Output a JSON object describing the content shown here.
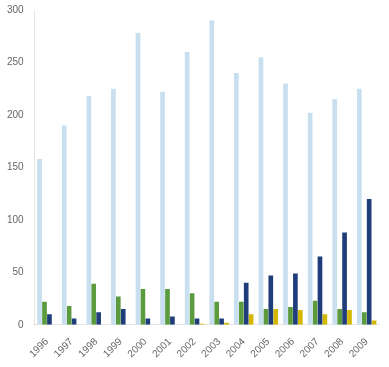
{
  "chart_data": {
    "type": "bar",
    "categories": [
      "1996",
      "1997",
      "1998",
      "1999",
      "2000",
      "2001",
      "2002",
      "2003",
      "2004",
      "2005",
      "2006",
      "2007",
      "2008",
      "2009"
    ],
    "series": [
      {
        "color": "#c8dff0",
        "values": [
          158,
          190,
          218,
          225,
          278,
          222,
          260,
          290,
          240,
          255,
          230,
          202,
          215,
          225
        ]
      },
      {
        "color": "#5b9a3d",
        "values": [
          22,
          18,
          39,
          27,
          34,
          34,
          30,
          22,
          22,
          15,
          17,
          23,
          15,
          12
        ]
      },
      {
        "color": "#1f3d7a",
        "values": [
          10,
          6,
          12,
          15,
          6,
          8,
          6,
          6,
          40,
          47,
          49,
          65,
          88,
          120
        ]
      },
      {
        "color": "#d4b800",
        "values": [
          0,
          0,
          0,
          0,
          0,
          0,
          1,
          2,
          10,
          15,
          14,
          10,
          14,
          4
        ]
      }
    ],
    "ylim": [
      0,
      300
    ],
    "yticks": [
      0,
      50,
      100,
      150,
      200,
      250,
      300
    ],
    "grid": false
  }
}
